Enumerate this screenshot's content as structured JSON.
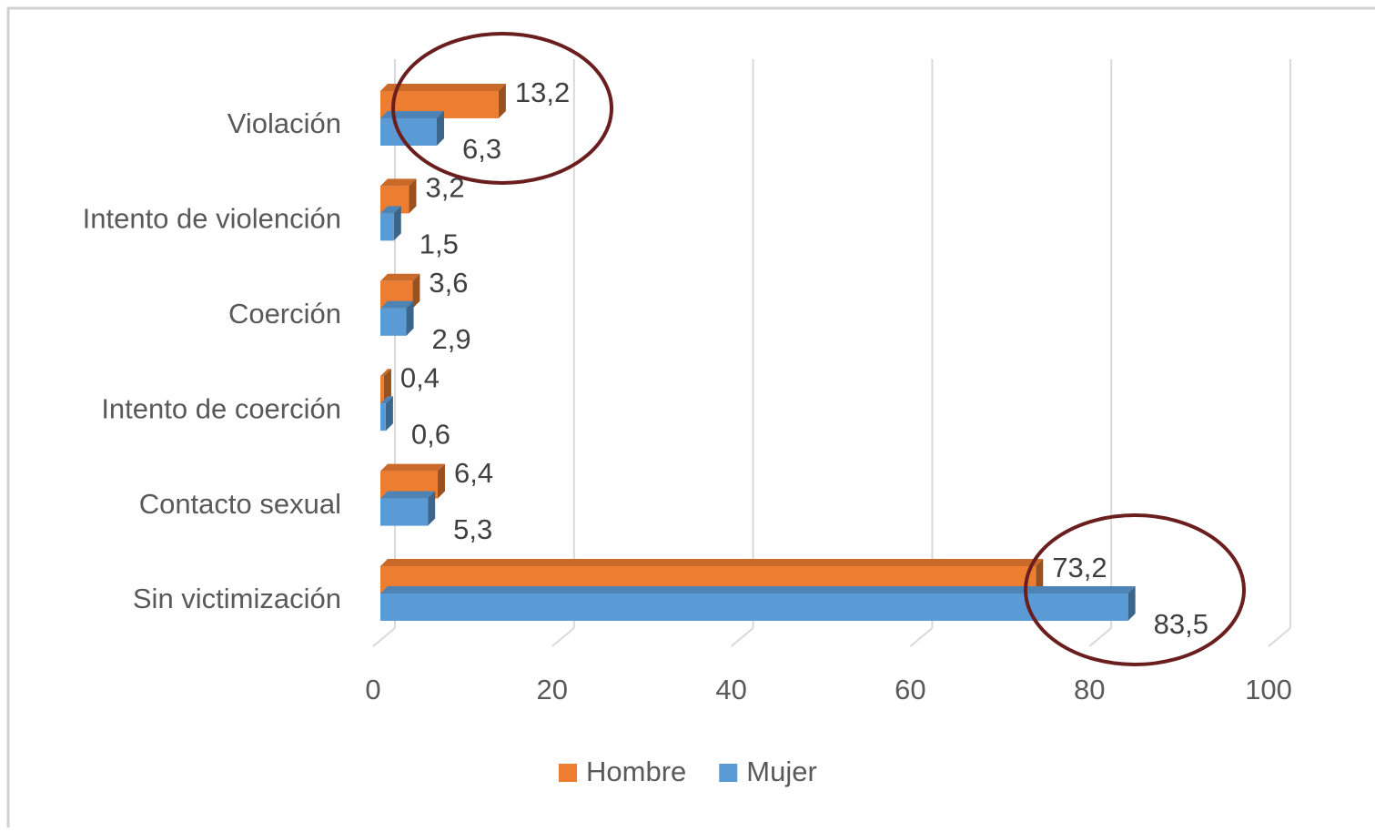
{
  "chart_data": {
    "type": "bar",
    "orientation": "horizontal",
    "categories": [
      "Violación",
      "Intento de violención",
      "Coerción",
      "Intento de coerción",
      "Contacto sexual",
      "Sin victimización"
    ],
    "series": [
      {
        "name": "Hombre",
        "color": "#ED7D31",
        "values": [
          13.2,
          3.2,
          3.6,
          0.4,
          6.4,
          73.2
        ],
        "value_labels": [
          "13,2",
          "3,2",
          "3,6",
          "0,4",
          "6,4",
          "73,2"
        ]
      },
      {
        "name": "Mujer",
        "color": "#5B9BD5",
        "values": [
          6.3,
          1.5,
          2.9,
          0.6,
          5.3,
          83.5
        ],
        "value_labels": [
          "6,3",
          "1,5",
          "2,9",
          "0,6",
          "5,3",
          "83,5"
        ]
      }
    ],
    "xlim": [
      0,
      100
    ],
    "xticks": [
      0,
      20,
      40,
      60,
      80,
      100
    ],
    "grid": true,
    "legend": "bottom"
  }
}
